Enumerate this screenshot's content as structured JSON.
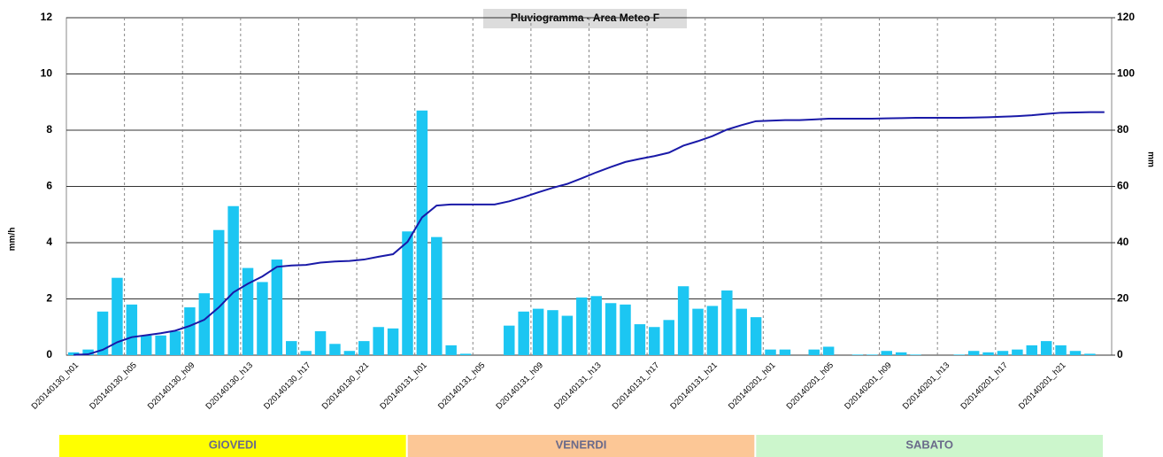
{
  "chart_data": {
    "type": "bar",
    "title": "Pluviogramma - Area Meteo F",
    "ylabel": "mm/h",
    "y2label": "mm",
    "categories": [
      "D20140130_h01",
      null,
      null,
      null,
      "D20140130_h05",
      null,
      null,
      null,
      "D20140130_h09",
      null,
      null,
      null,
      "D20140130_h13",
      null,
      null,
      null,
      "D20140130_h17",
      null,
      null,
      null,
      "D20140130_h21",
      null,
      null,
      null,
      "D20140131_h01",
      null,
      null,
      null,
      "D20140131_h05",
      null,
      null,
      null,
      "D20140131_h09",
      null,
      null,
      null,
      "D20140131_h13",
      null,
      null,
      null,
      "D20140131_h17",
      null,
      null,
      null,
      "D20140131_h21",
      null,
      null,
      null,
      "D20140201_h01",
      null,
      null,
      null,
      "D20140201_h05",
      null,
      null,
      null,
      "D20140201_h09",
      null,
      null,
      null,
      "D20140201_h13",
      null,
      null,
      null,
      "D20140201_h17",
      null,
      null,
      null,
      "D20140201_h21",
      null,
      null,
      null
    ],
    "series": [
      {
        "type": "bar",
        "color": "#1cc6f2",
        "axis": "y",
        "values": [
          0.1,
          0.2,
          1.55,
          2.75,
          1.8,
          0.7,
          0.7,
          0.85,
          1.7,
          2.2,
          4.45,
          5.3,
          3.1,
          2.6,
          3.4,
          0.5,
          0.15,
          0.85,
          0.4,
          0.15,
          0.5,
          1.0,
          0.95,
          4.4,
          8.7,
          4.2,
          0.35,
          0.05,
          0,
          0,
          1.05,
          1.55,
          1.65,
          1.6,
          1.4,
          2.05,
          2.1,
          1.85,
          1.8,
          1.1,
          1.0,
          1.25,
          2.45,
          1.65,
          1.75,
          2.3,
          1.65,
          1.35,
          0.2,
          0.2,
          0,
          0.2,
          0.3,
          0,
          0.02,
          0.02,
          0.15,
          0.1,
          0.02,
          0,
          0,
          0.02,
          0.15,
          0.1,
          0.15,
          0.2,
          0.35,
          0.5,
          0.35,
          0.15,
          0.05,
          0
        ]
      },
      {
        "type": "line",
        "color": "#1a1aa8",
        "axis": "y2",
        "values": [
          0.1,
          0.3,
          1.9,
          4.6,
          6.4,
          7.1,
          7.8,
          8.7,
          10.4,
          12.6,
          17,
          22.3,
          25.4,
          28,
          31.4,
          31.9,
          32.1,
          32.9,
          33.3,
          33.5,
          34,
          35,
          35.9,
          40.3,
          49,
          53.2,
          53.6,
          53.6,
          53.6,
          53.6,
          54.7,
          56.2,
          57.9,
          59.5,
          60.9,
          62.9,
          65,
          66.9,
          68.7,
          69.8,
          70.8,
          72,
          74.5,
          76.1,
          77.9,
          80.2,
          81.8,
          83.2,
          83.4,
          83.6,
          83.6,
          83.8,
          84.1,
          84.1,
          84.1,
          84.1,
          84.2,
          84.3,
          84.4,
          84.4,
          84.4,
          84.4,
          84.5,
          84.6,
          84.8,
          85,
          85.3,
          85.8,
          86.2,
          86.3,
          86.4,
          86.4
        ]
      }
    ],
    "ylim": [
      0,
      12
    ],
    "yticks": [
      0,
      2,
      4,
      6,
      8,
      10,
      12
    ],
    "y2lim": [
      0,
      120
    ],
    "y2ticks": [
      0,
      20,
      40,
      60,
      80,
      100,
      120
    ],
    "grid": true,
    "days": [
      {
        "label": "GIOVEDI",
        "color": "#ffff00"
      },
      {
        "label": "VENERDI",
        "color": "#fcc796"
      },
      {
        "label": "SABATO",
        "color": "#ccf6cc"
      }
    ]
  }
}
